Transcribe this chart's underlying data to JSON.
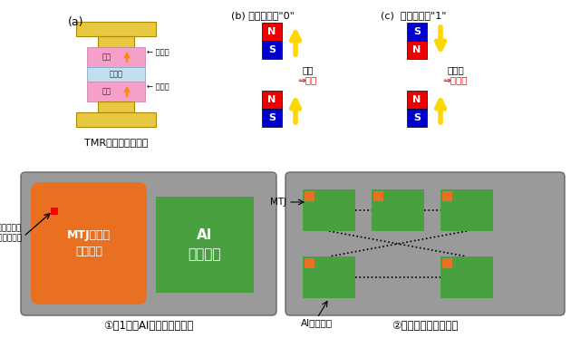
{
  "bg_color": "#ffffff",
  "panel_a_label": "(a)",
  "panel_b_label": "(b) ビット情報\"0\"",
  "panel_c_label": "(c)  ビット情報\"1\"",
  "tmr_title": "TMR素子の断面構造",
  "gold_color": "#E8C840",
  "pink_color": "#F4A0C8",
  "lightblue_color": "#C0E0F0",
  "red_color": "#EE0000",
  "blue_color": "#0000CC",
  "yellow_color": "#FFD700",
  "label_kirokuso": "記録層",
  "label_shohekiso": "障壁層",
  "label_sanshoso": "参照層",
  "label_jishaku": "磁石",
  "label_inryoku": "引力",
  "label_antei": "⇒安定",
  "label_hankyu": "反発力",
  "label_fuantei": "⇒不安定",
  "chip1_title": "①第1世代AIチップでの応用",
  "chip2_title": "②脳型チップでの応用",
  "chip_bg": "#9A9A9A",
  "orange_color": "#E87020",
  "green_color": "#48A040",
  "mtj_label": "MTJ素子の\nメモリー",
  "ai_label": "AI\nロジック",
  "access_label": "アクセスして\n稼働している部分",
  "mtj_label2": "MTJ",
  "ai_label2": "AIロジック"
}
